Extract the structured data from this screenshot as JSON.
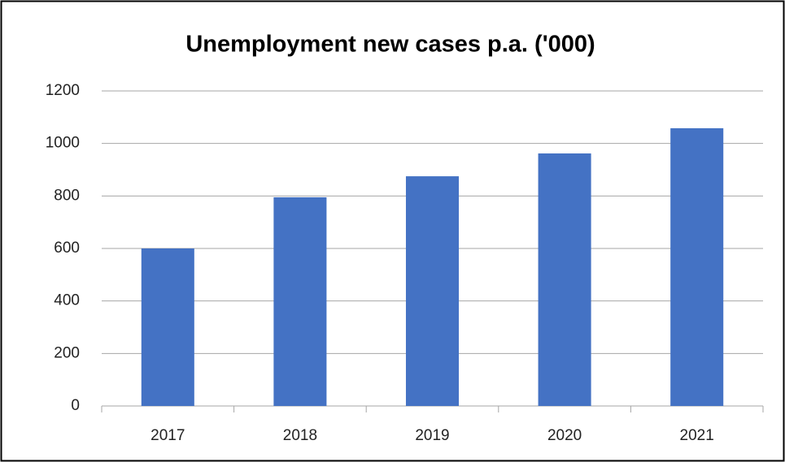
{
  "chart_data": {
    "type": "bar",
    "title": "Unemployment new cases p.a. ('000)",
    "categories": [
      "2017",
      "2018",
      "2019",
      "2020",
      "2021"
    ],
    "values": [
      600,
      795,
      875,
      962,
      1058
    ],
    "color": "#4472c4",
    "ylim": [
      0,
      1200
    ],
    "yticks": [
      0,
      200,
      400,
      600,
      800,
      1000,
      1200
    ],
    "grid": true
  }
}
